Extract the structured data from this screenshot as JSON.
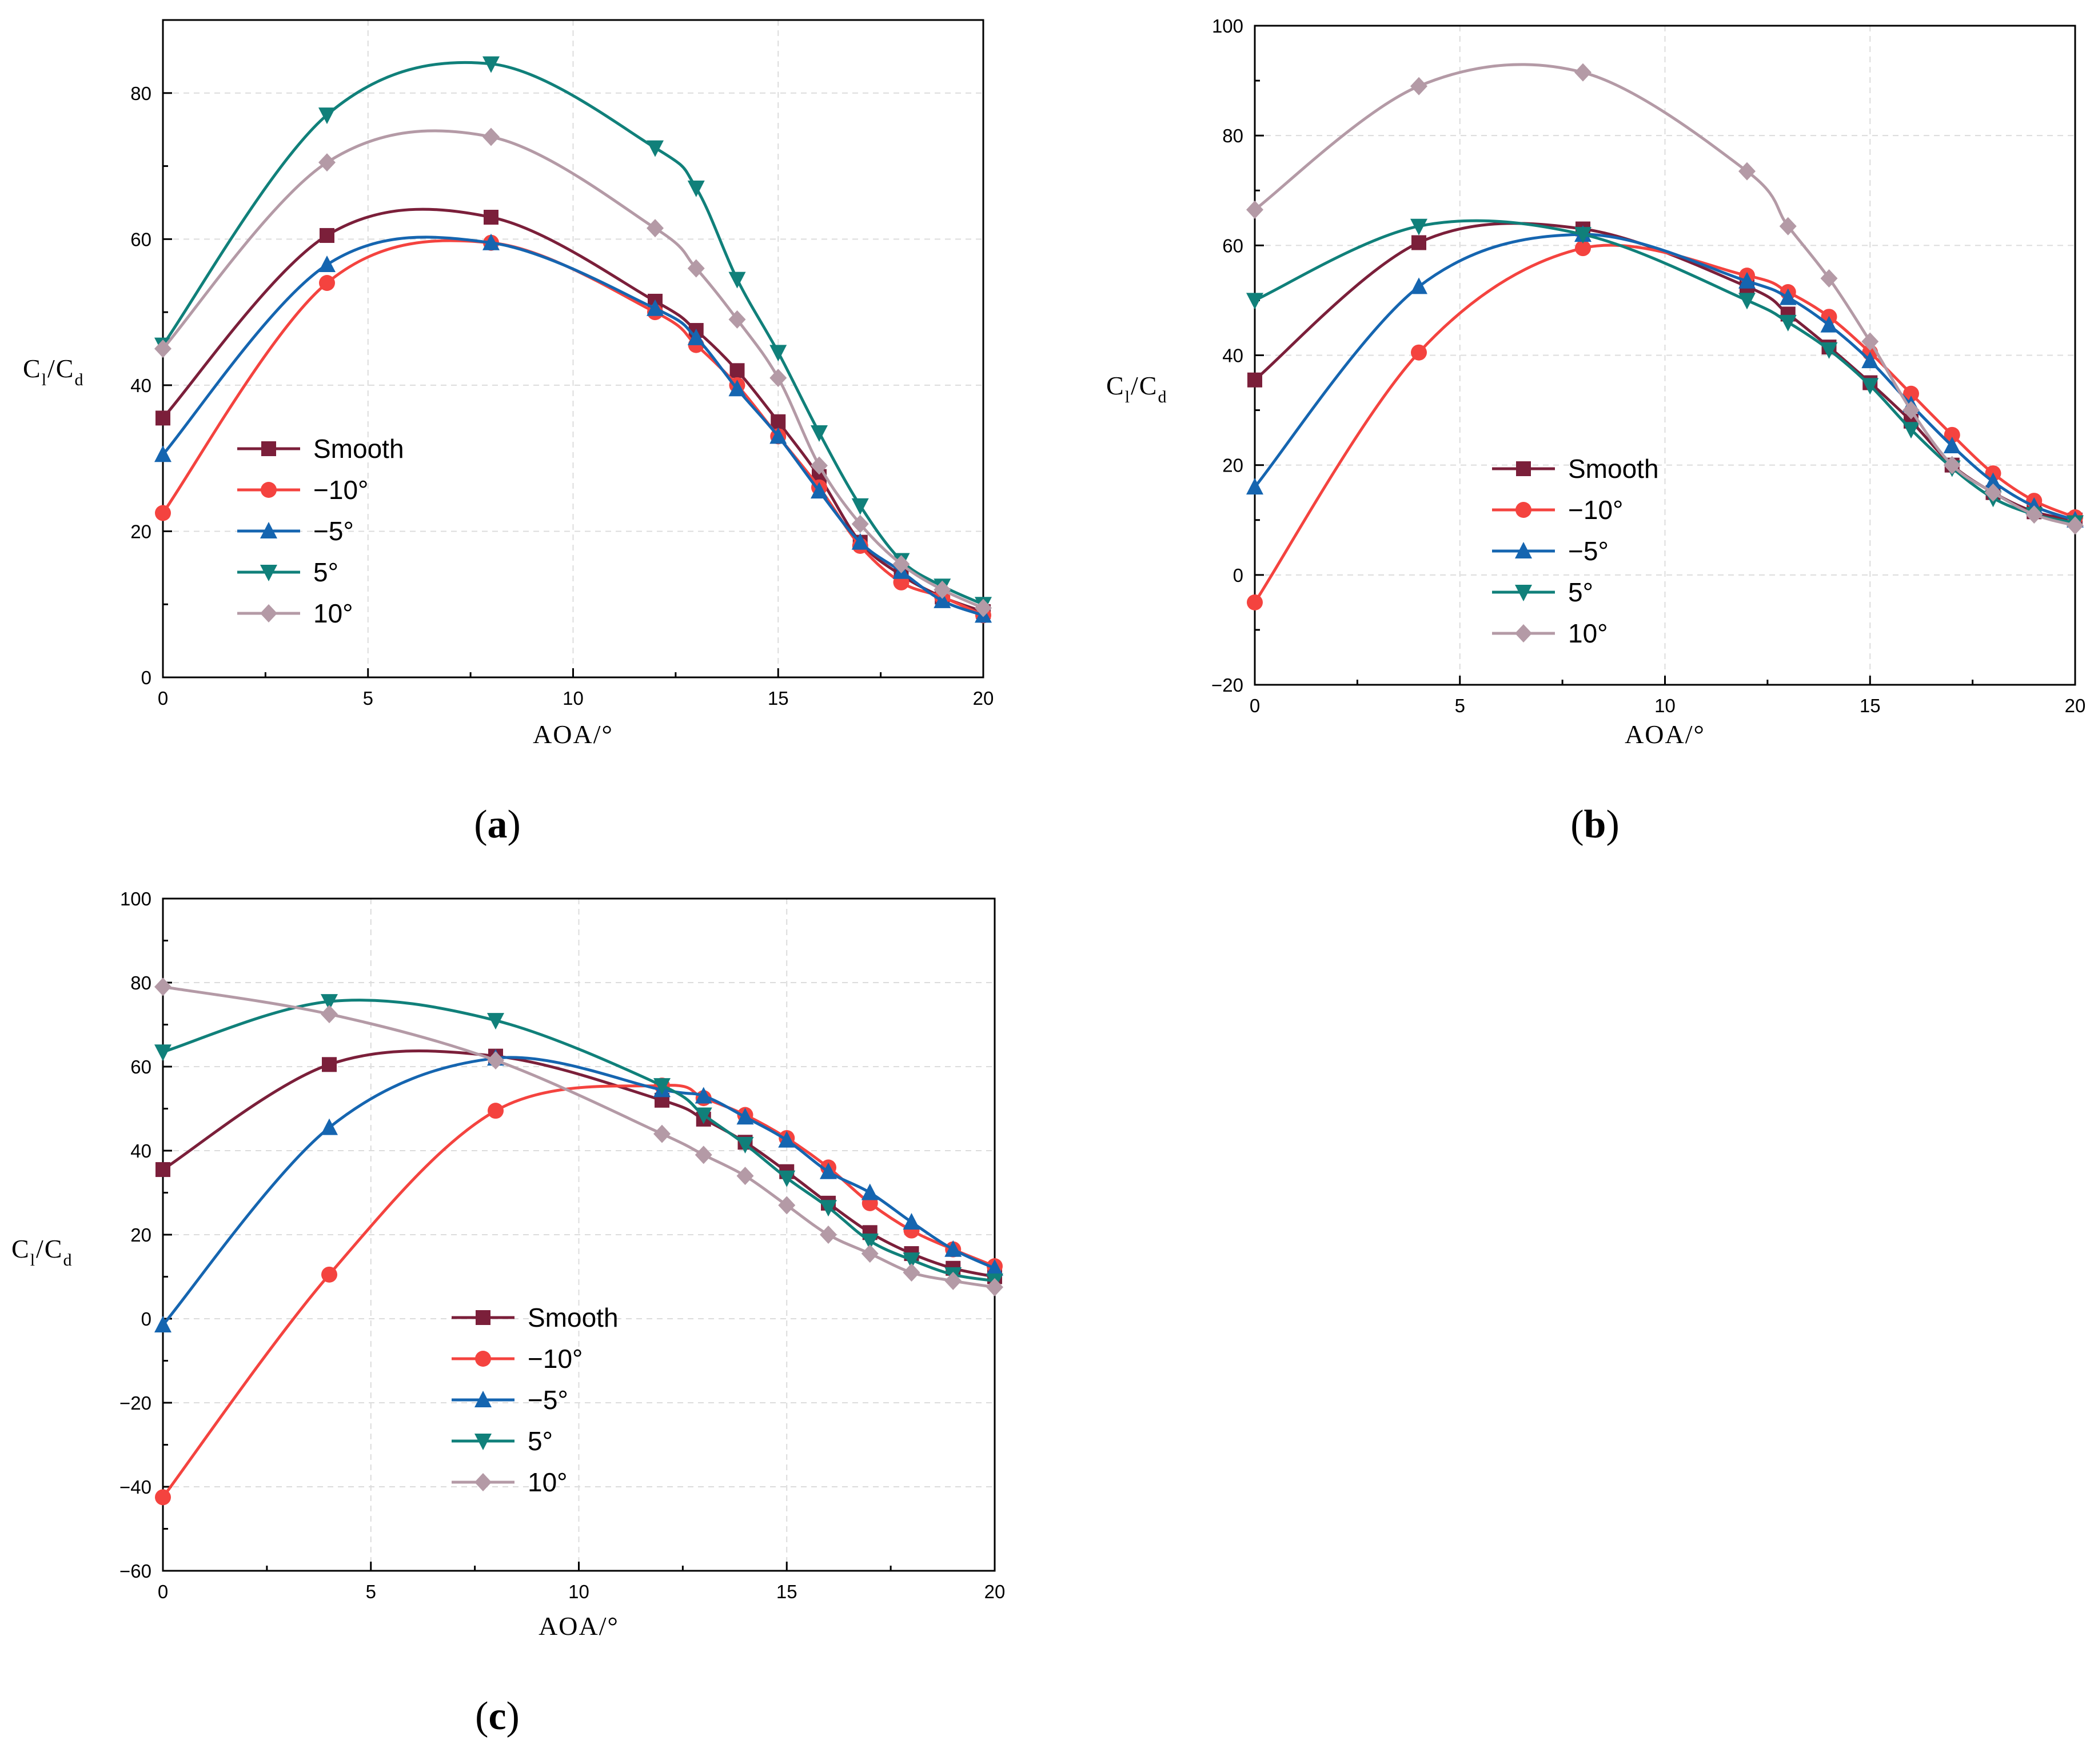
{
  "colors": {
    "Smooth": "#7b1f3a",
    "-10": "#f4433f",
    "-5": "#1565b0",
    "5": "#10807a",
    "10": "#b49aa6"
  },
  "chart_data": [
    {
      "panel_label": "a",
      "type": "line",
      "xlabel": "AOA/°",
      "ylabel": {
        "main": "C",
        "sub1": "l",
        "mid": "/C",
        "sub2": "d"
      },
      "xlim": [
        0,
        20
      ],
      "ylim": [
        0,
        90
      ],
      "xticks": [
        0,
        5,
        10,
        15,
        20
      ],
      "yticks": [
        0,
        20,
        40,
        60,
        80
      ],
      "x": [
        0,
        4,
        8,
        12,
        13,
        14,
        15,
        16,
        17,
        18,
        19,
        20
      ],
      "series": [
        {
          "name": "Smooth",
          "key": "Smooth",
          "marker": "square",
          "values": [
            35.5,
            60.5,
            63,
            51.5,
            47.5,
            42,
            35,
            27.5,
            18.5,
            14,
            11,
            9
          ]
        },
        {
          "name": "−10°",
          "key": "-10",
          "marker": "circle",
          "values": [
            22.5,
            54,
            59.5,
            50,
            45.5,
            40,
            33,
            26,
            18,
            13,
            11,
            8.5
          ]
        },
        {
          "name": "−5°",
          "key": "-5",
          "marker": "triangle-up",
          "values": [
            30.5,
            56.5,
            59.5,
            50.5,
            46.5,
            39.5,
            33,
            25.5,
            18.5,
            14.5,
            10.5,
            8.5
          ]
        },
        {
          "name": "5°",
          "key": "5",
          "marker": "triangle-down",
          "values": [
            45.5,
            77,
            84,
            72.5,
            67,
            54.5,
            44.5,
            33.5,
            23.5,
            16,
            12.5,
            10
          ]
        },
        {
          "name": "10°",
          "key": "10",
          "marker": "diamond",
          "values": [
            45,
            70.5,
            74,
            61.5,
            56,
            49,
            41,
            29,
            21,
            15.5,
            12,
            9.5
          ]
        }
      ]
    },
    {
      "panel_label": "b",
      "type": "line",
      "xlabel": "AOA/°",
      "ylabel": {
        "main": "C",
        "sub1": "l",
        "mid": "/C",
        "sub2": "d"
      },
      "xlim": [
        0,
        20
      ],
      "ylim": [
        -20,
        100
      ],
      "xticks": [
        0,
        5,
        10,
        15,
        20
      ],
      "yticks": [
        -20,
        0,
        20,
        40,
        60,
        80,
        100
      ],
      "x": [
        0,
        4,
        8,
        12,
        13,
        14,
        15,
        16,
        17,
        18,
        19,
        20
      ],
      "series": [
        {
          "name": "Smooth",
          "key": "Smooth",
          "marker": "square",
          "values": [
            35.5,
            60.5,
            63,
            52.5,
            47.5,
            41.5,
            35,
            28,
            20,
            15,
            11.5,
            10
          ]
        },
        {
          "name": "−10°",
          "key": "-10",
          "marker": "circle",
          "values": [
            -5,
            40.5,
            59.5,
            54.5,
            51.5,
            47,
            40.5,
            33,
            25.5,
            18.5,
            13.5,
            10.5
          ]
        },
        {
          "name": "−5°",
          "key": "-5",
          "marker": "triangle-up",
          "values": [
            16,
            52.5,
            62,
            53.5,
            50.5,
            45.5,
            39,
            31,
            23.5,
            17,
            12.5,
            10
          ]
        },
        {
          "name": "5°",
          "key": "5",
          "marker": "triangle-down",
          "values": [
            50,
            63.5,
            62,
            50,
            46,
            41,
            34.5,
            26.5,
            19.5,
            14,
            11,
            9.5
          ]
        },
        {
          "name": "10°",
          "key": "10",
          "marker": "diamond",
          "values": [
            66.5,
            89,
            91.5,
            73.5,
            63.5,
            54,
            42.5,
            30,
            20,
            15,
            11,
            9
          ]
        }
      ]
    },
    {
      "panel_label": "c",
      "type": "line",
      "xlabel": "AOA/°",
      "ylabel": {
        "main": "C",
        "sub1": "l",
        "mid": "/C",
        "sub2": "d"
      },
      "xlim": [
        0,
        20
      ],
      "ylim": [
        -60,
        100
      ],
      "xticks": [
        0,
        5,
        10,
        15,
        20
      ],
      "yticks": [
        -60,
        -40,
        -20,
        0,
        20,
        40,
        60,
        80,
        100
      ],
      "x": [
        0,
        4,
        8,
        12,
        13,
        14,
        15,
        16,
        17,
        18,
        19,
        20
      ],
      "series": [
        {
          "name": "Smooth",
          "key": "Smooth",
          "marker": "square",
          "values": [
            35.5,
            60.5,
            62.5,
            52,
            47.5,
            42,
            35,
            27.5,
            20.5,
            15.5,
            12,
            10
          ]
        },
        {
          "name": "−10°",
          "key": "-10",
          "marker": "circle",
          "values": [
            -42.5,
            10.5,
            49.5,
            55.5,
            52.5,
            48.5,
            43,
            36,
            27.5,
            21,
            16.5,
            12.5
          ]
        },
        {
          "name": "−5°",
          "key": "-5",
          "marker": "triangle-up",
          "values": [
            -1.5,
            45.5,
            62,
            54.5,
            53,
            48,
            42.5,
            35,
            30,
            23,
            16.5,
            12
          ]
        },
        {
          "name": "5°",
          "key": "5",
          "marker": "triangle-down",
          "values": [
            63.5,
            75.5,
            71,
            55.5,
            48.5,
            41.5,
            33.5,
            26.5,
            18.5,
            14,
            10.5,
            9
          ]
        },
        {
          "name": "10°",
          "key": "10",
          "marker": "diamond",
          "values": [
            79,
            72.5,
            61.5,
            44,
            39,
            34,
            27,
            20,
            15.5,
            11,
            9,
            7.5
          ]
        }
      ]
    }
  ]
}
